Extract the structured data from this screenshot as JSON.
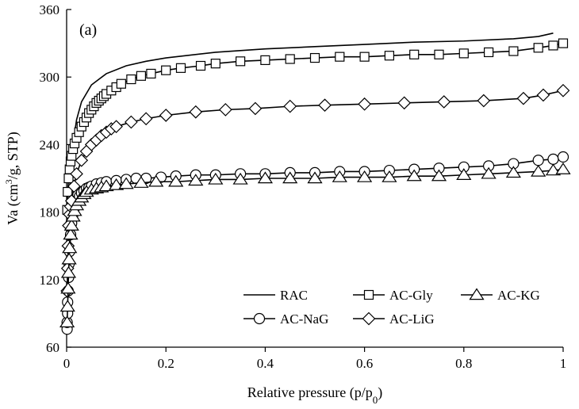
{
  "chart_data": {
    "type": "line",
    "panel_label": "(a)",
    "xlabel_main": "Relative pressure (p/p",
    "xlabel_sub": "0",
    "xlabel_end": ")",
    "ylabel_part1": "Va (cm",
    "ylabel_sup": "3",
    "ylabel_part2": "/g, STP)",
    "xlim": [
      0,
      1
    ],
    "ylim": [
      60,
      360
    ],
    "x_ticks": [
      0,
      0.2,
      0.4,
      0.6,
      0.8,
      1
    ],
    "x_tick_labels": [
      "0",
      "0.2",
      "0.4",
      "0.6",
      "0.8",
      "1"
    ],
    "y_ticks": [
      60,
      120,
      180,
      240,
      300,
      360
    ],
    "y_tick_labels": [
      "60",
      "120",
      "180",
      "240",
      "300",
      "360"
    ],
    "grid": false,
    "legend_position": "bottom-right",
    "series": [
      {
        "name": "RAC",
        "marker": "none",
        "x": [
          0.001,
          0.003,
          0.006,
          0.01,
          0.02,
          0.03,
          0.05,
          0.08,
          0.12,
          0.16,
          0.2,
          0.3,
          0.4,
          0.5,
          0.6,
          0.7,
          0.8,
          0.9,
          0.95,
          0.98
        ],
        "y": [
          120,
          160,
          200,
          232,
          262,
          278,
          293,
          303,
          310,
          314,
          317,
          322,
          325,
          327,
          329,
          331,
          332,
          334,
          336,
          339
        ]
      },
      {
        "name": "AC-Gly",
        "marker": "square",
        "x": [
          0.001,
          0.002,
          0.004,
          0.006,
          0.008,
          0.01,
          0.013,
          0.016,
          0.02,
          0.025,
          0.03,
          0.035,
          0.04,
          0.045,
          0.05,
          0.055,
          0.06,
          0.065,
          0.07,
          0.075,
          0.08,
          0.09,
          0.1,
          0.11,
          0.13,
          0.15,
          0.17,
          0.2,
          0.23,
          0.27,
          0.3,
          0.35,
          0.4,
          0.45,
          0.5,
          0.55,
          0.6,
          0.65,
          0.7,
          0.75,
          0.8,
          0.85,
          0.9,
          0.95,
          0.98,
          1.0
        ],
        "y": [
          182,
          198,
          210,
          218,
          225,
          230,
          236,
          241,
          246,
          251,
          256,
          260,
          264,
          268,
          271,
          274,
          277,
          279,
          281,
          283,
          285,
          288,
          291,
          294,
          298,
          301,
          303,
          306,
          308,
          310,
          312,
          314,
          315,
          316,
          317,
          318,
          318,
          319,
          320,
          320,
          321,
          322,
          323,
          326,
          328,
          330
        ]
      },
      {
        "name": "AC-NaG",
        "marker": "circle",
        "x": [
          0.001,
          0.001,
          0.002,
          0.002,
          0.003,
          0.004,
          0.005,
          0.006,
          0.008,
          0.01,
          0.012,
          0.015,
          0.018,
          0.022,
          0.026,
          0.03,
          0.035,
          0.04,
          0.045,
          0.05,
          0.06,
          0.07,
          0.08,
          0.1,
          0.12,
          0.14,
          0.16,
          0.19,
          0.22,
          0.26,
          0.3,
          0.35,
          0.4,
          0.45,
          0.5,
          0.55,
          0.6,
          0.65,
          0.7,
          0.75,
          0.8,
          0.85,
          0.9,
          0.95,
          0.98,
          1.0
        ],
        "y": [
          76,
          82,
          90,
          100,
          110,
          122,
          134,
          145,
          160,
          170,
          177,
          183,
          187,
          191,
          194,
          197,
          199,
          201,
          202,
          203,
          205,
          206,
          207,
          208,
          209,
          210,
          210,
          211,
          212,
          213,
          213,
          214,
          214,
          215,
          215,
          216,
          216,
          217,
          218,
          219,
          220,
          221,
          223,
          226,
          227,
          229
        ]
      },
      {
        "name": "AC-LiG",
        "marker": "diamond",
        "x": [
          0.001,
          0.002,
          0.003,
          0.004,
          0.006,
          0.008,
          0.01,
          0.015,
          0.02,
          0.03,
          0.04,
          0.05,
          0.06,
          0.07,
          0.08,
          0.09,
          0.1,
          0.13,
          0.16,
          0.2,
          0.26,
          0.32,
          0.38,
          0.45,
          0.52,
          0.6,
          0.68,
          0.76,
          0.84,
          0.92,
          0.96,
          1.0
        ],
        "y": [
          110,
          130,
          150,
          168,
          178,
          185,
          190,
          203,
          214,
          226,
          234,
          240,
          244,
          248,
          251,
          254,
          256,
          260,
          263,
          266,
          269,
          271,
          272,
          274,
          275,
          276,
          277,
          278,
          279,
          281,
          284,
          288
        ]
      },
      {
        "name": "AC-KG",
        "marker": "triangle",
        "x": [
          0.001,
          0.002,
          0.003,
          0.004,
          0.005,
          0.006,
          0.008,
          0.01,
          0.013,
          0.016,
          0.02,
          0.025,
          0.03,
          0.035,
          0.04,
          0.05,
          0.06,
          0.07,
          0.08,
          0.1,
          0.12,
          0.15,
          0.18,
          0.22,
          0.26,
          0.3,
          0.35,
          0.4,
          0.45,
          0.5,
          0.55,
          0.6,
          0.65,
          0.7,
          0.75,
          0.8,
          0.85,
          0.9,
          0.95,
          0.98,
          1.0
        ],
        "y": [
          82,
          96,
          112,
          126,
          138,
          148,
          160,
          168,
          176,
          181,
          186,
          190,
          193,
          196,
          198,
          200,
          201,
          202,
          203,
          204,
          205,
          206,
          207,
          207,
          208,
          209,
          209,
          210,
          210,
          210,
          211,
          211,
          211,
          212,
          212,
          213,
          214,
          215,
          216,
          217,
          218
        ]
      }
    ],
    "legend_rows": [
      [
        "RAC",
        "AC-Gly",
        "AC-KG"
      ],
      [
        "AC-NaG",
        "AC-LiG"
      ]
    ]
  }
}
